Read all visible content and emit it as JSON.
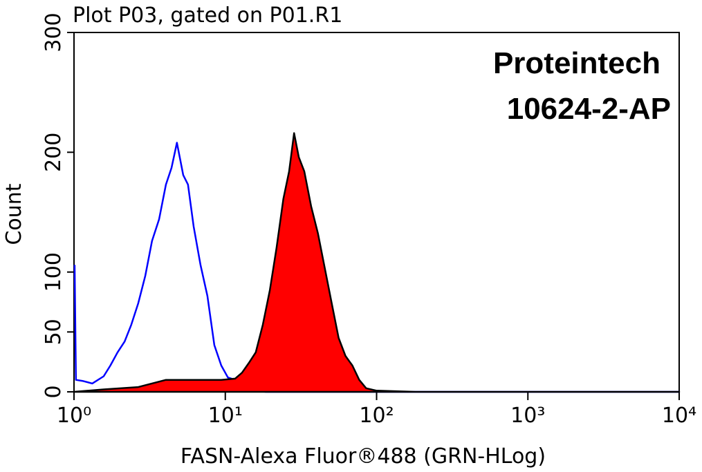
{
  "chart_data": {
    "type": "line",
    "title": "Plot P03, gated on P01.R1",
    "annotations": [
      "Proteintech",
      "10624-2-AP"
    ],
    "xlabel": "FASN-Alexa Fluor®488 (GRN-HLog)",
    "ylabel": "Count",
    "xscale": "log",
    "xlim": [
      1,
      10000
    ],
    "ylim": [
      0,
      300
    ],
    "xticks": [
      {
        "value": 1,
        "label": "10⁰"
      },
      {
        "value": 10,
        "label": "10¹"
      },
      {
        "value": 100,
        "label": "10²"
      },
      {
        "value": 1000,
        "label": "10³"
      },
      {
        "value": 10000,
        "label": "10⁴"
      }
    ],
    "yticks": [
      0,
      50,
      100,
      200,
      300
    ],
    "series": [
      {
        "color": "#0000ff",
        "fill": false,
        "x": [
          1.01,
          1.03,
          1.15,
          1.32,
          1.57,
          1.74,
          1.94,
          2.16,
          2.39,
          2.66,
          2.96,
          3.28,
          3.65,
          4.05,
          4.41,
          4.79,
          5.27,
          5.67,
          6.18,
          6.86,
          7.62,
          8.46,
          9.4,
          10.4,
          11.6,
          12.9,
          15.9,
          18.5,
          100,
          10000
        ],
        "values": [
          106,
          10,
          9,
          7,
          13,
          22,
          33,
          42,
          56,
          74,
          97,
          126,
          144,
          173,
          187,
          208,
          181,
          173,
          138,
          106,
          80,
          39,
          22,
          12,
          10,
          4,
          1,
          0,
          0,
          0
        ]
      },
      {
        "color": "#ff0000",
        "edge_color": "#000000",
        "fill": true,
        "x": [
          1,
          1.57,
          2.66,
          4.05,
          6.18,
          9.4,
          11.6,
          12.9,
          14.3,
          15.9,
          17.7,
          19.7,
          21.8,
          24.2,
          26.4,
          28.5,
          30.6,
          33.3,
          36.9,
          41,
          45.5,
          50.5,
          56.1,
          62.3,
          69.2,
          76.8,
          85.3,
          100,
          180,
          10000
        ],
        "values": [
          0,
          2,
          4,
          10,
          10,
          10,
          11,
          16,
          24,
          33,
          56,
          85,
          120,
          161,
          184,
          216,
          196,
          184,
          155,
          132,
          103,
          74,
          45,
          30,
          22,
          10,
          3,
          1,
          0,
          0
        ]
      }
    ]
  }
}
